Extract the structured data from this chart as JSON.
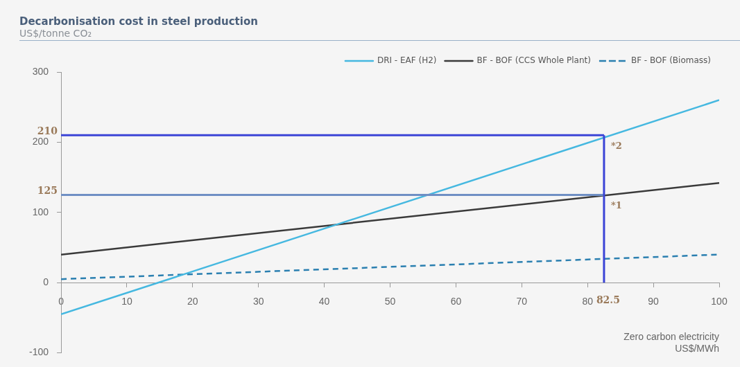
{
  "chart_data": {
    "type": "line",
    "title": "Decarbonisation cost in steel production",
    "subtitle": "US$/tonne CO₂",
    "xlabel": "Zero carbon electricity\nUS$/MWh",
    "x": [
      0,
      100
    ],
    "series": [
      {
        "name": "DRI - EAF (H2)",
        "color": "#45b8e0",
        "values": [
          -45,
          260
        ]
      },
      {
        "name": "BF - BOF (CCS Whole Plant)",
        "color": "#3a3a3a",
        "values": [
          40,
          142
        ]
      },
      {
        "name": "BF - BOF (Biomass)",
        "color": "#2a7fb0",
        "values": [
          5,
          40
        ],
        "line_style": "dashed"
      }
    ],
    "xlim": [
      0,
      100
    ],
    "xticks": [
      0,
      10,
      20,
      30,
      40,
      50,
      60,
      70,
      80,
      90,
      100
    ],
    "ylim": [
      -100,
      300
    ],
    "yticks": [
      -100,
      0,
      100,
      200,
      300
    ],
    "ref_lines": [
      {
        "axis": "y",
        "value": 210,
        "label": "210",
        "color": "#3b44d6"
      },
      {
        "axis": "y",
        "value": 125,
        "label": "125",
        "color": "#6f8fc4"
      },
      {
        "axis": "x",
        "value": 82.5,
        "label": "82.5",
        "color": "#3b44d6"
      }
    ],
    "annotations": [
      {
        "text": "*2",
        "x": 82.5,
        "y": 210
      },
      {
        "text": "*1",
        "x": 82.5,
        "y": 125
      }
    ],
    "grid": false,
    "legend": "top right",
    "marker": "none",
    "line_style": "solid"
  }
}
